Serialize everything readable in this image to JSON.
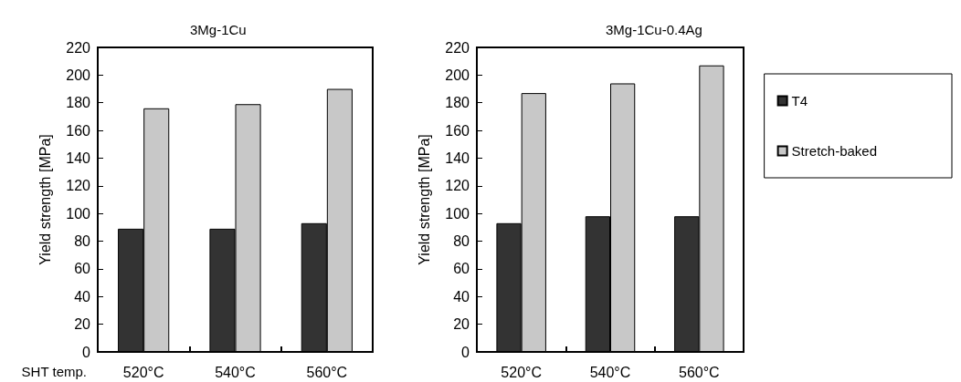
{
  "chart_data": [
    {
      "type": "bar",
      "title": "3Mg-1Cu",
      "xlabel": "SHT temp.",
      "ylabel": "Yield strength [MPa]",
      "categories": [
        "520°C",
        "540°C",
        "560°C"
      ],
      "series": [
        {
          "color": "#333333",
          "values": [
            89,
            89,
            93
          ]
        },
        {
          "color": "#c8c8c8",
          "values": [
            176,
            179,
            190
          ]
        }
      ],
      "ylim": [
        0,
        220
      ],
      "yticks": [
        0,
        20,
        40,
        60,
        80,
        100,
        120,
        140,
        160,
        180,
        200,
        220
      ],
      "grid": false,
      "legend": false
    },
    {
      "type": "bar",
      "title": "3Mg-1Cu-0.4Ag",
      "ylabel": "Yield strength [MPa]",
      "categories": [
        "520°C",
        "540°C",
        "560°C"
      ],
      "series": [
        {
          "name": "T4",
          "color": "#333333",
          "values": [
            93,
            98,
            98
          ]
        },
        {
          "name": "Stretch-baked",
          "color": "#c8c8c8",
          "values": [
            187,
            194,
            207
          ]
        }
      ],
      "ylim": [
        0,
        220
      ],
      "yticks": [
        0,
        20,
        40,
        60,
        80,
        100,
        120,
        140,
        160,
        180,
        200,
        220
      ],
      "grid": false,
      "legend": "right"
    }
  ]
}
